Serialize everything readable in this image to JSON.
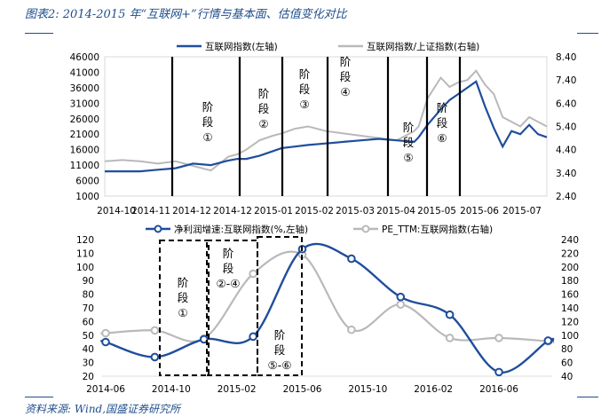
{
  "title": "图表2:  2014-2015 年“互联网+”行情与基本面、估值变化对比",
  "source": "资料来源:  Wind,国盛证券研究所",
  "colors": {
    "blue": "#1f4e9c",
    "gray": "#b9b9b9",
    "title": "#1f4e8c"
  },
  "chart_data": [
    {
      "type": "line",
      "legend_position": "top",
      "x_ticks": [
        "2014-10",
        "2014-11",
        "2014-12",
        "2014-12",
        "2015-01",
        "2015-02",
        "2015-03",
        "2015-04",
        "2015-05",
        "2015-06",
        "2015-07"
      ],
      "y_left_ticks": [
        "46000",
        "41000",
        "36000",
        "31000",
        "26000",
        "21000",
        "16000",
        "11000",
        "6000",
        "1000"
      ],
      "y_right_ticks": [
        "8.40",
        "7.40",
        "6.40",
        "5.40",
        "4.40",
        "3.40",
        "2.40"
      ],
      "ylim_left": [
        1000,
        46000
      ],
      "ylim_right": [
        2.4,
        8.4
      ],
      "series": [
        {
          "name": "互联网指数(左轴)",
          "axis": "left",
          "color": "#1f4e9c",
          "x": [
            0,
            0.04,
            0.08,
            0.12,
            0.16,
            0.2,
            0.24,
            0.28,
            0.3,
            0.32,
            0.35,
            0.38,
            0.4,
            0.43,
            0.46,
            0.5,
            0.54,
            0.58,
            0.62,
            0.66,
            0.7,
            0.71,
            0.73,
            0.76,
            0.78,
            0.8,
            0.82,
            0.84,
            0.86,
            0.88,
            0.9,
            0.92,
            0.94,
            0.96,
            0.98,
            1.0
          ],
          "values": [
            9000,
            9000,
            9000,
            9500,
            10000,
            11500,
            11000,
            12500,
            13000,
            13000,
            14000,
            15500,
            16500,
            17000,
            17500,
            18000,
            18500,
            19000,
            19500,
            19000,
            18500,
            20000,
            24000,
            29000,
            32000,
            34000,
            36000,
            38000,
            30000,
            23000,
            17000,
            22000,
            21000,
            24000,
            21000,
            20000
          ]
        },
        {
          "name": "互联网指数/上证指数(右轴)",
          "axis": "right",
          "color": "#b9b9b9",
          "x": [
            0,
            0.04,
            0.08,
            0.12,
            0.16,
            0.2,
            0.24,
            0.28,
            0.3,
            0.32,
            0.35,
            0.38,
            0.4,
            0.43,
            0.46,
            0.5,
            0.54,
            0.58,
            0.62,
            0.66,
            0.7,
            0.71,
            0.73,
            0.76,
            0.78,
            0.8,
            0.82,
            0.84,
            0.86,
            0.88,
            0.9,
            0.92,
            0.94,
            0.96,
            0.98,
            1.0
          ],
          "values": [
            3.9,
            3.95,
            3.9,
            3.8,
            3.9,
            3.7,
            3.5,
            4.1,
            4.2,
            4.4,
            4.8,
            5.0,
            5.1,
            5.3,
            5.4,
            5.2,
            5.1,
            5.0,
            4.9,
            4.8,
            5.2,
            5.4,
            6.6,
            7.5,
            7.1,
            7.3,
            7.4,
            7.8,
            7.2,
            6.8,
            5.8,
            5.6,
            5.4,
            5.8,
            5.6,
            5.4
          ]
        }
      ],
      "phase_labels": [
        "阶",
        "段",
        "①",
        "阶",
        "段",
        "②",
        "阶",
        "段",
        "③",
        "阶",
        "段",
        "④",
        "阶",
        "段",
        "⑤",
        "阶",
        "段",
        "⑥"
      ]
    },
    {
      "type": "line",
      "legend_position": "top",
      "x_ticks": [
        "2014-06",
        "2014-10",
        "2015-02",
        "2015-06",
        "2015-10",
        "2016-02",
        "2016-06"
      ],
      "y_left_ticks": [
        "120",
        "110",
        "100",
        "90",
        "80",
        "70",
        "60",
        "50",
        "40",
        "30",
        "20"
      ],
      "y_right_ticks": [
        "240",
        "220",
        "200",
        "180",
        "160",
        "140",
        "120",
        "100",
        "80",
        "60",
        "40"
      ],
      "ylim_left": [
        20,
        120
      ],
      "ylim_right": [
        40,
        240
      ],
      "series": [
        {
          "name": "净利润增速:互联网指数(%,左轴)",
          "axis": "left",
          "color": "#1f4e9c",
          "x": [
            "2014-06",
            "2014-09",
            "2014-12",
            "2015-03",
            "2015-06",
            "2015-09",
            "2015-12",
            "2016-03",
            "2016-06",
            "2016-09"
          ],
          "values": [
            45,
            34,
            47,
            49,
            113,
            106,
            78,
            65,
            23,
            46
          ]
        },
        {
          "name": "PE_TTM:互联网指数(右轴)",
          "axis": "right",
          "color": "#b9b9b9",
          "x": [
            "2014-06",
            "2014-09",
            "2014-12",
            "2015-03",
            "2015-06",
            "2015-09",
            "2015-12",
            "2016-03",
            "2016-06",
            "2016-09"
          ],
          "values": [
            103,
            107,
            95,
            190,
            218,
            108,
            145,
            96,
            96,
            91
          ]
        }
      ],
      "phase_labels": [
        "阶",
        "段",
        "①",
        "阶",
        "段",
        "②-④",
        "阶",
        "段",
        "⑤-⑥"
      ]
    }
  ]
}
